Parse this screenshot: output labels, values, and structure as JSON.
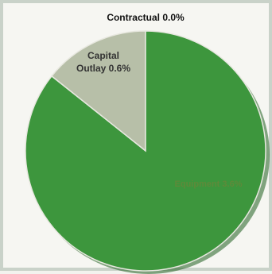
{
  "chart_data": {
    "type": "pie",
    "title": "",
    "slices": [
      {
        "label_lines": [
          "Contractual 0.0%"
        ],
        "value": 0.0,
        "color": "#2f7f2f"
      },
      {
        "label_lines": [
          "Capital",
          "Outlay 0.6%"
        ],
        "value": 0.6,
        "color": "#b7bfa8"
      },
      {
        "label_lines": [
          "Equipment 3.6%"
        ],
        "value": 3.6,
        "color": "#3d963d"
      }
    ],
    "start_angle_deg": 0,
    "direction": "counterclockwise",
    "label_colors": {
      "Contractual 0.0%": "#111111",
      "Capital Outlay 0.6%": "#333333",
      "Equipment 3.6%": "#5e8a3a"
    }
  }
}
